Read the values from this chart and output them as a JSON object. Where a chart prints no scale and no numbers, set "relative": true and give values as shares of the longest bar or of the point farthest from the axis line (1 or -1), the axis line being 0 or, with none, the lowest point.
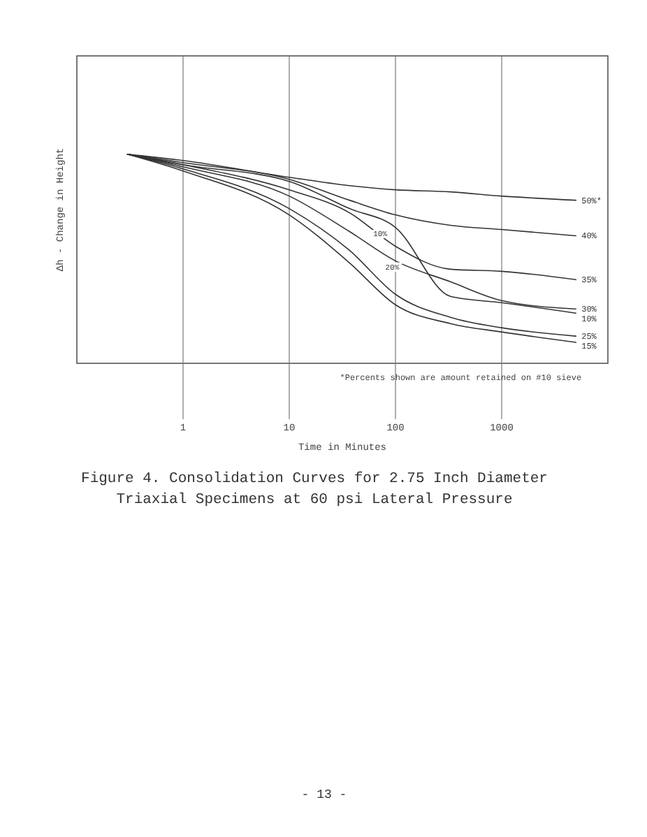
{
  "chart_data": {
    "type": "line",
    "title": "Figure 4.  Consolidation Curves for 2.75 Inch Diameter",
    "subtitle": "Triaxial Specimens at 60 psi Lateral Pressure",
    "xlabel": "Time in Minutes",
    "ylabel": "Δh - Change in Height",
    "x": [
      0.3,
      1,
      10,
      37,
      100,
      330,
      1000,
      5000
    ],
    "series": [
      {
        "name": "50%*",
        "color": "#333333",
        "values": [
          1.0,
          0.97,
          0.89,
          0.85,
          0.83,
          0.82,
          0.8,
          0.78
        ]
      },
      {
        "name": "40%",
        "color": "#333333",
        "values": [
          1.0,
          0.96,
          0.88,
          0.78,
          0.71,
          0.66,
          0.64,
          0.61
        ]
      },
      {
        "name": "35%",
        "color": "#333333",
        "values": [
          1.0,
          0.95,
          0.83,
          0.72,
          0.56,
          0.45,
          0.44,
          0.4
        ]
      },
      {
        "name": "30%",
        "color": "#333333",
        "values": [
          1.0,
          0.94,
          0.8,
          0.63,
          0.49,
          0.39,
          0.3,
          0.26
        ]
      },
      {
        "name": "10%",
        "color": "#333333",
        "values": [
          1.0,
          0.95,
          0.87,
          0.74,
          0.65,
          0.32,
          0.29,
          0.24
        ]
      },
      {
        "name": "25%",
        "color": "#333333",
        "values": [
          1.0,
          0.93,
          0.74,
          0.54,
          0.33,
          0.22,
          0.17,
          0.13
        ]
      },
      {
        "name": "15%",
        "color": "#333333",
        "values": [
          1.0,
          0.92,
          0.71,
          0.48,
          0.28,
          0.19,
          0.15,
          0.1
        ]
      }
    ],
    "relative": true,
    "log": "x",
    "xlim": [
      0.1,
      10000
    ],
    "xticks": [
      1,
      10,
      100,
      1000
    ],
    "grid": "x",
    "legend": false,
    "marker": "none",
    "line_style": "solid",
    "annotations": [
      "*Percents shown are amount retained on #10 sieve",
      "- 13 -",
      {
        "text": "10%",
        "x": 100,
        "y": 0.62
      },
      {
        "text": "20%",
        "x": 130,
        "y": 0.46
      }
    ]
  }
}
